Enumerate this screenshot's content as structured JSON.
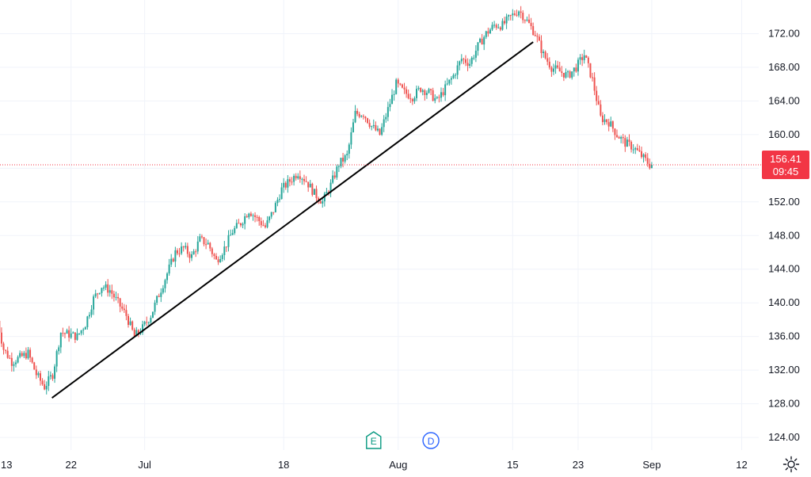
{
  "chart_data": {
    "type": "candlestick",
    "colors": {
      "up": "#26a69a",
      "down": "#ef5350",
      "grid": "#f0f3fa",
      "trendline": "#000000",
      "price_line": "#f23645"
    },
    "y_axis": {
      "range": [
        122.5,
        176.0
      ],
      "ticks": [
        "124.00",
        "128.00",
        "132.00",
        "136.00",
        "140.00",
        "144.00",
        "148.00",
        "152.00",
        "156.00",
        "160.00",
        "164.00",
        "168.00",
        "172.00"
      ],
      "tick_values": [
        124,
        128,
        132,
        136,
        140,
        144,
        148,
        152,
        156,
        160,
        164,
        168,
        172
      ]
    },
    "x_axis": {
      "range": [
        "2022-06-13 07:30",
        "2022-09-14 02:00"
      ],
      "ticks": [
        {
          "label": "13",
          "date": "2022-06-13"
        },
        {
          "label": "22",
          "date": "2022-06-22"
        },
        {
          "label": "Jul",
          "date": "2022-07-01"
        },
        {
          "label": "18",
          "date": "2022-07-18"
        },
        {
          "label": "Aug",
          "date": "2022-08-01"
        },
        {
          "label": "15",
          "date": "2022-08-15"
        },
        {
          "label": "23",
          "date": "2022-08-23"
        },
        {
          "label": "Sep",
          "date": "2022-09-01"
        },
        {
          "label": "12",
          "date": "2022-09-12"
        }
      ]
    },
    "price_key_points": [
      [
        "2022-06-13",
        139.0
      ],
      [
        "2022-06-14",
        134.5
      ],
      [
        "2022-06-15",
        133.0
      ],
      [
        "2022-06-16",
        133.5
      ],
      [
        "2022-06-17",
        134.0
      ],
      [
        "2022-06-18",
        131.5
      ],
      [
        "2022-06-19",
        130.0
      ],
      [
        "2022-06-20",
        131.5
      ],
      [
        "2022-06-21",
        136.5
      ],
      [
        "2022-06-23",
        136.0
      ],
      [
        "2022-06-24",
        137.5
      ],
      [
        "2022-06-25",
        140.5
      ],
      [
        "2022-06-26",
        142.0
      ],
      [
        "2022-06-27",
        141.5
      ],
      [
        "2022-06-28",
        140.0
      ],
      [
        "2022-06-29",
        138.5
      ],
      [
        "2022-06-30",
        136.0
      ],
      [
        "2022-07-01",
        137.0
      ],
      [
        "2022-07-02",
        138.5
      ],
      [
        "2022-07-04",
        143.5
      ],
      [
        "2022-07-05",
        146.0
      ],
      [
        "2022-07-06",
        146.5
      ],
      [
        "2022-07-07",
        145.5
      ],
      [
        "2022-07-08",
        147.5
      ],
      [
        "2022-07-09",
        147.0
      ],
      [
        "2022-07-10",
        145.0
      ],
      [
        "2022-07-11",
        146.5
      ],
      [
        "2022-07-12",
        148.5
      ],
      [
        "2022-07-13",
        149.5
      ],
      [
        "2022-07-14",
        151.0
      ],
      [
        "2022-07-15",
        150.0
      ],
      [
        "2022-07-16",
        149.0
      ],
      [
        "2022-07-17",
        151.0
      ],
      [
        "2022-07-18",
        153.5
      ],
      [
        "2022-07-19",
        154.5
      ],
      [
        "2022-07-20",
        155.5
      ],
      [
        "2022-07-21",
        154.5
      ],
      [
        "2022-07-22",
        153.0
      ],
      [
        "2022-07-23",
        152.0
      ],
      [
        "2022-07-24",
        154.0
      ],
      [
        "2022-07-25",
        156.5
      ],
      [
        "2022-07-26",
        157.5
      ],
      [
        "2022-07-27",
        162.5
      ],
      [
        "2022-07-28",
        162.5
      ],
      [
        "2022-07-29",
        161.0
      ],
      [
        "2022-07-30",
        160.0
      ],
      [
        "2022-07-31",
        163.0
      ],
      [
        "2022-08-01",
        166.0
      ],
      [
        "2022-08-02",
        165.0
      ],
      [
        "2022-08-03",
        164.5
      ],
      [
        "2022-08-04",
        165.5
      ],
      [
        "2022-08-05",
        165.0
      ],
      [
        "2022-08-06",
        164.0
      ],
      [
        "2022-08-07",
        165.5
      ],
      [
        "2022-08-08",
        167.0
      ],
      [
        "2022-08-09",
        169.0
      ],
      [
        "2022-08-10",
        168.5
      ],
      [
        "2022-08-11",
        170.5
      ],
      [
        "2022-08-12",
        172.0
      ],
      [
        "2022-08-13",
        173.0
      ],
      [
        "2022-08-14",
        173.0
      ],
      [
        "2022-08-15",
        174.0
      ],
      [
        "2022-08-16",
        174.8
      ],
      [
        "2022-08-17",
        173.5
      ],
      [
        "2022-08-18",
        172.0
      ],
      [
        "2022-08-19",
        169.5
      ],
      [
        "2022-08-20",
        168.0
      ],
      [
        "2022-08-21",
        167.5
      ],
      [
        "2022-08-22",
        167.0
      ],
      [
        "2022-08-23",
        168.0
      ],
      [
        "2022-08-24",
        169.5
      ],
      [
        "2022-08-25",
        166.5
      ],
      [
        "2022-08-26",
        162.0
      ],
      [
        "2022-08-27",
        161.5
      ],
      [
        "2022-08-28",
        160.0
      ],
      [
        "2022-08-29",
        159.0
      ],
      [
        "2022-08-30",
        158.5
      ],
      [
        "2022-09-01",
        156.41
      ]
    ],
    "trendline": {
      "from": [
        "2022-06-19 16:00",
        128.7
      ],
      "to": [
        "2022-08-17 12:00",
        171.0
      ]
    },
    "last_price": {
      "value": "156.41",
      "countdown": "09:45",
      "numeric": 156.41
    },
    "events": [
      {
        "label": "E",
        "name": "earnings",
        "date": "2022-07-29",
        "color": "#089981"
      },
      {
        "label": "D",
        "name": "dividend",
        "date": "2022-08-05",
        "color": "#2962ff"
      }
    ]
  },
  "icons": {
    "settings": "gear-icon"
  }
}
